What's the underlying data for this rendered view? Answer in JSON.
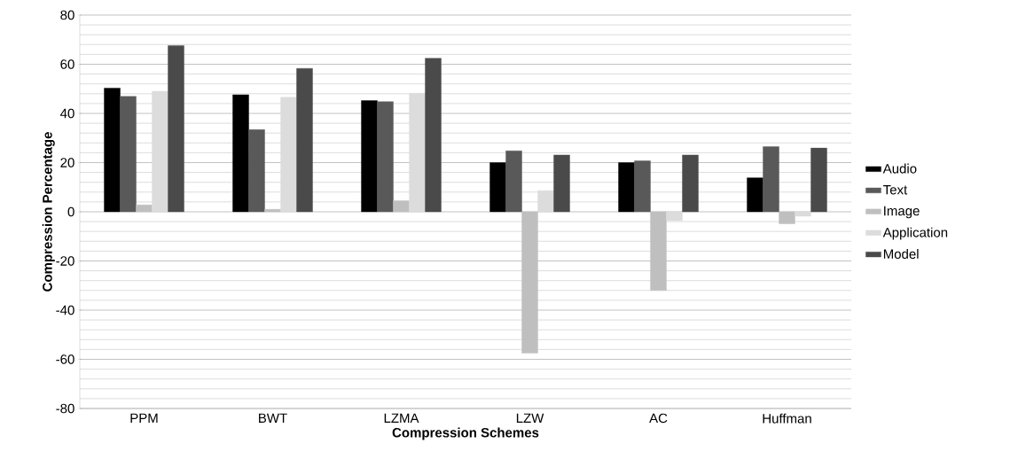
{
  "chart_data": {
    "type": "bar",
    "xlabel": "Compression Schemes",
    "ylabel": "Compression Percentage",
    "categories": [
      "PPM",
      "BWT",
      "LZMA",
      "LZW",
      "AC",
      "Huffman"
    ],
    "series": [
      {
        "name": "Audio",
        "color": "#000000",
        "values": [
          50.3,
          47.6,
          45.2,
          20,
          20,
          13.8
        ]
      },
      {
        "name": "Text",
        "color": "#595959",
        "values": [
          46.9,
          33.4,
          44.8,
          24.8,
          20.7,
          26.5
        ]
      },
      {
        "name": "Image",
        "color": "#bfbfbf",
        "values": [
          2.8,
          1,
          4.5,
          -57.5,
          -32,
          -4.9
        ]
      },
      {
        "name": "Application",
        "color": "#dcdcdc",
        "values": [
          49,
          46.6,
          48.2,
          8.6,
          -3.6,
          -1.8
        ]
      },
      {
        "name": "Model",
        "color": "#4a4a4a",
        "values": [
          67.6,
          58.3,
          62.4,
          23.1,
          23.1,
          25.9
        ]
      }
    ],
    "ylim": [
      -80,
      80
    ],
    "yticks": [
      -80,
      -60,
      -40,
      -20,
      0,
      20,
      40,
      60,
      80
    ],
    "grid": "y",
    "legend": "right"
  }
}
